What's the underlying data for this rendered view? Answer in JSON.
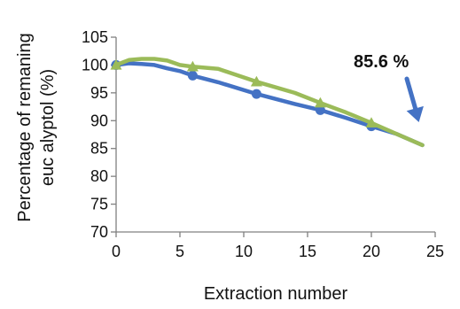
{
  "chart_data": {
    "type": "line",
    "title": "",
    "xlabel": "Extraction number",
    "ylabel_line1": "Percentage of remaning",
    "ylabel_line2": "euc alyptol (%)",
    "xlim": [
      0,
      25
    ],
    "ylim": [
      70,
      105
    ],
    "xticks": [
      0,
      5,
      10,
      15,
      20,
      25
    ],
    "yticks": [
      70,
      75,
      80,
      85,
      90,
      95,
      100,
      105
    ],
    "grid": false,
    "legend": "none",
    "annotation": "85.6 %",
    "series": [
      {
        "color": "#4472C4",
        "marker": "circle",
        "x": [
          0,
          1,
          2,
          3,
          4,
          5,
          6,
          8,
          11,
          14,
          16,
          18,
          20,
          22,
          24
        ],
        "y": [
          100,
          100.3,
          100.2,
          100.0,
          99.4,
          98.9,
          98.1,
          96.9,
          94.8,
          93.0,
          91.9,
          90.5,
          89.0,
          87.6,
          85.6
        ],
        "markers_x": [
          0,
          6,
          11,
          16,
          20
        ],
        "markers_y": [
          100,
          98.1,
          94.8,
          91.9,
          89.0
        ]
      },
      {
        "color": "#9BBB59",
        "marker": "triangle",
        "x": [
          0,
          1,
          2,
          3,
          4,
          5,
          6,
          8,
          11,
          14,
          16,
          18,
          20,
          22,
          24
        ],
        "y": [
          100,
          100.9,
          101.1,
          101.1,
          100.8,
          100.0,
          99.7,
          99.3,
          97.0,
          95.0,
          93.2,
          91.5,
          89.6,
          87.6,
          85.6
        ],
        "markers_x": [
          0,
          6,
          11,
          16,
          20
        ],
        "markers_y": [
          100,
          99.7,
          97.0,
          93.2,
          89.6
        ]
      }
    ],
    "arrow_color": "#4472C4"
  }
}
